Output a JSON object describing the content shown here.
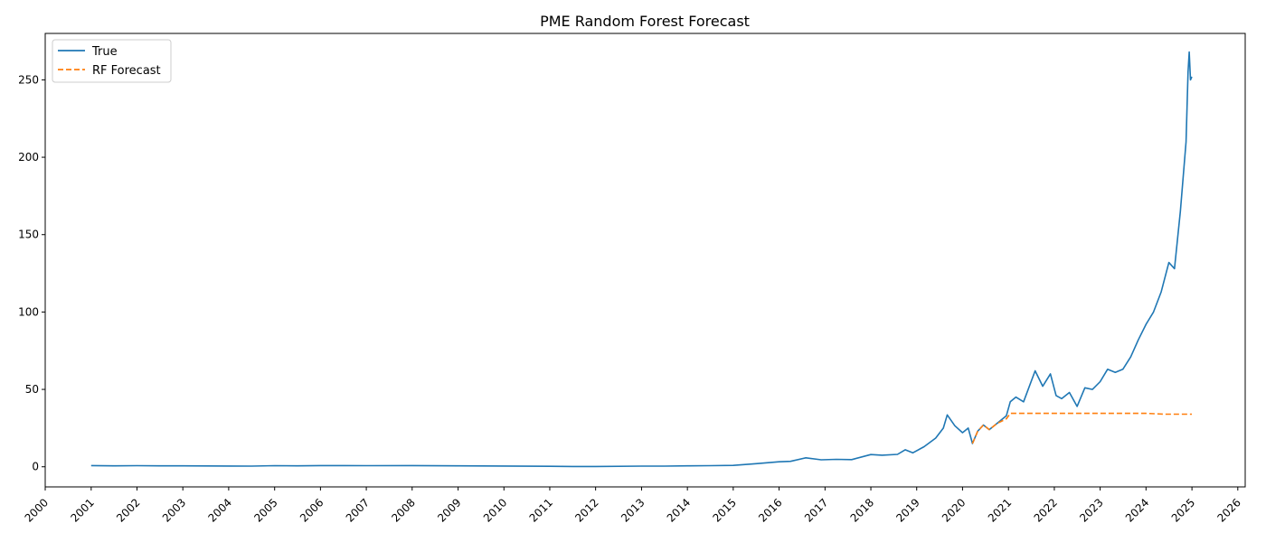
{
  "chart_data": {
    "type": "line",
    "title": "PME Random Forest Forecast",
    "xlabel": "",
    "ylabel": "",
    "x_axis": "date",
    "xlim": [
      "2000-01-01",
      "2026-03-01"
    ],
    "ylim": [
      -13,
      280
    ],
    "x_ticks": [
      "2000",
      "2001",
      "2002",
      "2003",
      "2004",
      "2005",
      "2006",
      "2007",
      "2008",
      "2009",
      "2010",
      "2011",
      "2012",
      "2013",
      "2014",
      "2015",
      "2016",
      "2017",
      "2018",
      "2019",
      "2020",
      "2021",
      "2022",
      "2023",
      "2024",
      "2025",
      "2026"
    ],
    "y_ticks": [
      0,
      50,
      100,
      150,
      200,
      250
    ],
    "grid": false,
    "legend_position": "top-left",
    "legend": [
      "True",
      "RF Forecast"
    ],
    "series": [
      {
        "name": "True",
        "color": "#1f77b4",
        "style": "solid",
        "points": [
          [
            "2001-01-01",
            0.8
          ],
          [
            "2001-07-01",
            0.6
          ],
          [
            "2002-01-01",
            0.7
          ],
          [
            "2002-07-01",
            0.6
          ],
          [
            "2003-01-01",
            0.6
          ],
          [
            "2004-01-01",
            0.5
          ],
          [
            "2004-07-01",
            0.4
          ],
          [
            "2005-01-01",
            0.7
          ],
          [
            "2005-07-01",
            0.6
          ],
          [
            "2006-01-01",
            0.8
          ],
          [
            "2007-01-01",
            0.7
          ],
          [
            "2008-01-01",
            0.8
          ],
          [
            "2009-01-01",
            0.6
          ],
          [
            "2010-01-01",
            0.5
          ],
          [
            "2011-01-01",
            0.3
          ],
          [
            "2011-07-01",
            0.2
          ],
          [
            "2012-01-01",
            0.2
          ],
          [
            "2013-01-01",
            0.4
          ],
          [
            "2013-07-01",
            0.4
          ],
          [
            "2014-01-01",
            0.6
          ],
          [
            "2014-07-01",
            0.7
          ],
          [
            "2015-01-01",
            0.9
          ],
          [
            "2015-07-01",
            2.0
          ],
          [
            "2016-01-01",
            3.2
          ],
          [
            "2016-04-01",
            3.5
          ],
          [
            "2016-08-01",
            5.8
          ],
          [
            "2016-12-01",
            4.5
          ],
          [
            "2017-04-01",
            4.8
          ],
          [
            "2017-08-01",
            4.6
          ],
          [
            "2018-01-01",
            7.9
          ],
          [
            "2018-04-01",
            7.5
          ],
          [
            "2018-08-01",
            8.0
          ],
          [
            "2018-10-01",
            11.0
          ],
          [
            "2018-12-01",
            9.0
          ],
          [
            "2019-03-01",
            13.0
          ],
          [
            "2019-06-01",
            18.5
          ],
          [
            "2019-08-01",
            25.0
          ],
          [
            "2019-09-01",
            33.5
          ],
          [
            "2019-11-01",
            26.5
          ],
          [
            "2020-01-01",
            22.0
          ],
          [
            "2020-02-15",
            25.0
          ],
          [
            "2020-03-20",
            15.0
          ],
          [
            "2020-05-01",
            23.0
          ],
          [
            "2020-06-15",
            27.0
          ],
          [
            "2020-08-01",
            24.0
          ],
          [
            "2020-10-01",
            28.0
          ],
          [
            "2020-12-15",
            33.0
          ],
          [
            "2021-01-15",
            42.0
          ],
          [
            "2021-03-01",
            45.0
          ],
          [
            "2021-05-01",
            42.0
          ],
          [
            "2021-08-01",
            62.0
          ],
          [
            "2021-10-01",
            52.0
          ],
          [
            "2021-12-01",
            60.0
          ],
          [
            "2022-01-15",
            46.0
          ],
          [
            "2022-03-01",
            44.0
          ],
          [
            "2022-05-01",
            48.0
          ],
          [
            "2022-07-01",
            39.0
          ],
          [
            "2022-09-01",
            51.0
          ],
          [
            "2022-11-01",
            50.0
          ],
          [
            "2023-01-01",
            55.0
          ],
          [
            "2023-03-01",
            63.0
          ],
          [
            "2023-05-01",
            61.0
          ],
          [
            "2023-07-01",
            63.0
          ],
          [
            "2023-09-01",
            71.0
          ],
          [
            "2023-11-01",
            82.0
          ],
          [
            "2024-01-01",
            92.0
          ],
          [
            "2024-03-01",
            100.0
          ],
          [
            "2024-05-01",
            113.0
          ],
          [
            "2024-07-01",
            132.0
          ],
          [
            "2024-08-15",
            128.0
          ],
          [
            "2024-10-01",
            165.0
          ],
          [
            "2024-11-15",
            210.0
          ],
          [
            "2024-12-01",
            255.0
          ],
          [
            "2024-12-10",
            268.0
          ],
          [
            "2024-12-20",
            250.0
          ],
          [
            "2024-12-31",
            252.0
          ]
        ]
      },
      {
        "name": "RF Forecast",
        "color": "#ff7f0e",
        "style": "dashed",
        "points": [
          [
            "2020-03-20",
            15.0
          ],
          [
            "2020-05-01",
            23.0
          ],
          [
            "2020-06-15",
            27.0
          ],
          [
            "2020-08-01",
            24.0
          ],
          [
            "2020-10-01",
            28.0
          ],
          [
            "2020-12-15",
            31.0
          ],
          [
            "2021-01-15",
            34.5
          ],
          [
            "2021-06-01",
            34.5
          ],
          [
            "2022-01-01",
            34.5
          ],
          [
            "2023-01-01",
            34.5
          ],
          [
            "2024-01-01",
            34.5
          ],
          [
            "2024-06-01",
            34.0
          ],
          [
            "2024-12-31",
            34.0
          ]
        ]
      }
    ]
  }
}
